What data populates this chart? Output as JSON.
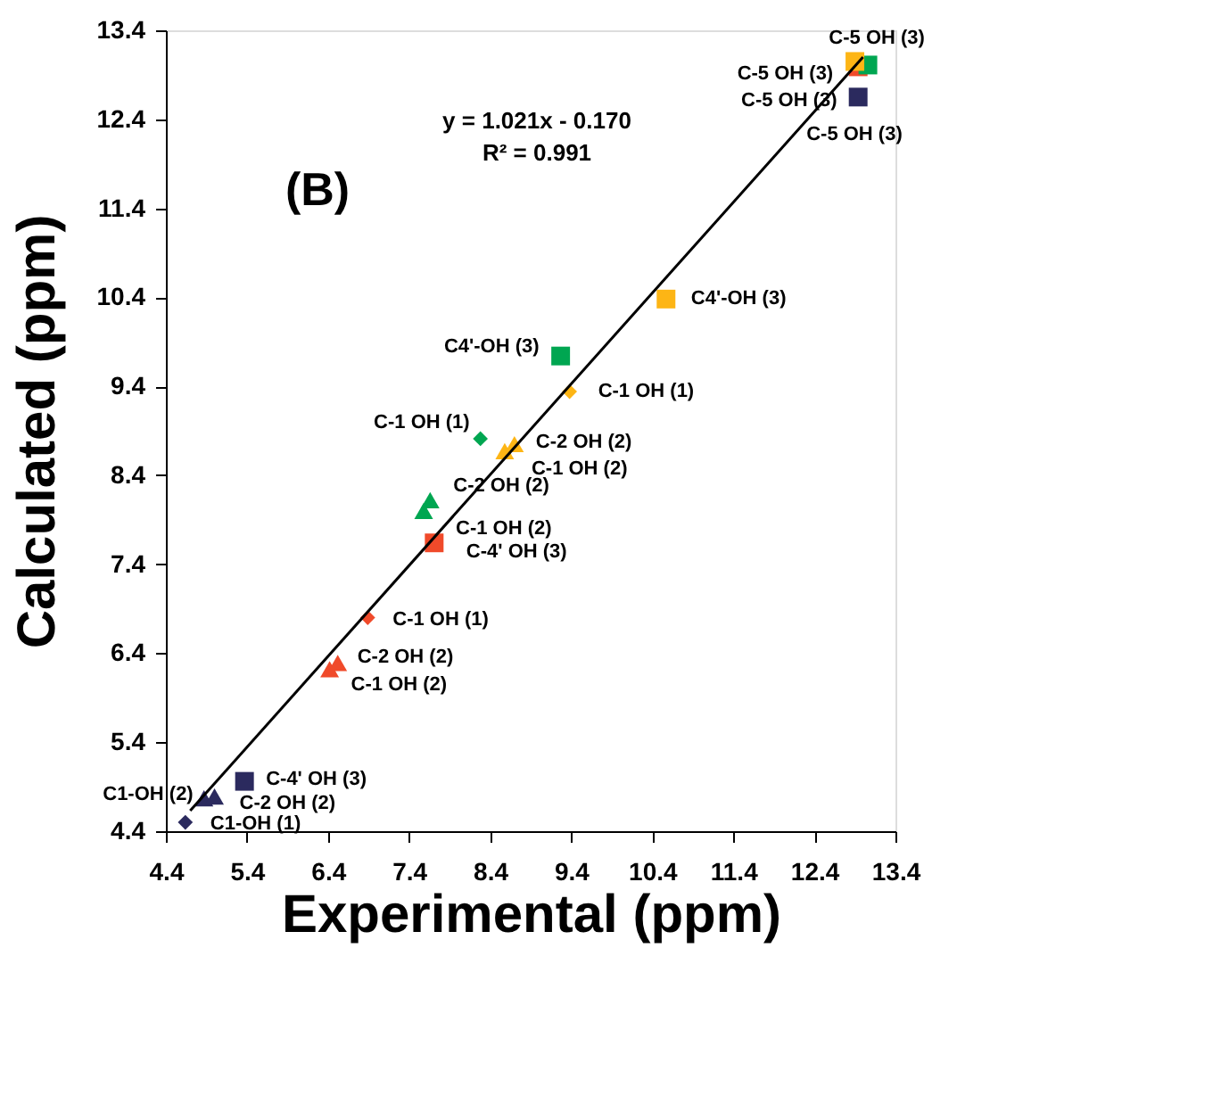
{
  "chart_data": {
    "type": "scatter",
    "xlabel": "Experimental (ppm)",
    "ylabel": "Calculated (ppm)",
    "xlim": [
      4.4,
      13.4
    ],
    "ylim": [
      4.4,
      13.4
    ],
    "xticks": [
      4.4,
      5.4,
      6.4,
      7.4,
      8.4,
      9.4,
      10.4,
      11.4,
      12.4,
      13.4
    ],
    "yticks": [
      4.4,
      5.4,
      6.4,
      7.4,
      8.4,
      9.4,
      10.4,
      11.4,
      12.4,
      13.4
    ],
    "grid": false,
    "series": [
      {
        "marker": "diamond",
        "color": "#2b2a5e",
        "x": [
          4.64
        ],
        "values": [
          4.5
        ],
        "value_labels": [
          "C1-OH (1)"
        ]
      },
      {
        "marker": "triangle",
        "color": "#2b2a5e",
        "x": [
          4.87,
          5.0
        ],
        "values": [
          4.77,
          4.79
        ],
        "value_labels": [
          "C1-OH (2)",
          "C-2 OH (2)"
        ]
      },
      {
        "marker": "square",
        "color": "#2b2a5e",
        "x": [
          5.37,
          12.94
        ],
        "values": [
          4.96,
          12.65
        ],
        "value_labels": [
          "C-4' OH (3)",
          "C-5 OH (3)"
        ]
      },
      {
        "marker": "diamond",
        "color": "#f04a2a",
        "x": [
          6.89
        ],
        "values": [
          6.8
        ],
        "value_labels": [
          "C-1 OH (1)"
        ]
      },
      {
        "marker": "triangle",
        "color": "#f04a2a",
        "x": [
          6.42,
          6.52
        ],
        "values": [
          6.22,
          6.29
        ],
        "value_labels": [
          "C-1 OH (2)",
          "C-2 OH (2)"
        ]
      },
      {
        "marker": "square",
        "color": "#f04a2a",
        "x": [
          7.71,
          12.94
        ],
        "values": [
          7.64,
          12.99
        ],
        "value_labels": [
          "C-4' OH (3)",
          "C-5 OH (3)"
        ]
      },
      {
        "marker": "diamond",
        "color": "#00a651",
        "x": [
          8.28
        ],
        "values": [
          8.81
        ],
        "value_labels": [
          "C-1 OH (1)"
        ]
      },
      {
        "marker": "triangle",
        "color": "#00a651",
        "x": [
          7.58,
          7.66
        ],
        "values": [
          8.0,
          8.12
        ],
        "value_labels": [
          "C-1 OH (2)",
          "C-2 OH (2)"
        ]
      },
      {
        "marker": "square",
        "color": "#00a651",
        "x": [
          9.27,
          13.06
        ],
        "values": [
          9.74,
          13.01
        ],
        "value_labels": [
          "C4'-OH (3)",
          "C-5 OH (3)"
        ]
      },
      {
        "marker": "diamond",
        "color": "#fdb515",
        "x": [
          9.38
        ],
        "values": [
          9.34
        ],
        "value_labels": [
          "C-1 OH (1)"
        ]
      },
      {
        "marker": "triangle",
        "color": "#fdb515",
        "x": [
          8.58,
          8.7
        ],
        "values": [
          8.67,
          8.75
        ],
        "value_labels": [
          "C-1 OH (2)",
          "C-2 OH (2)"
        ]
      },
      {
        "marker": "square",
        "color": "#fdb515",
        "x": [
          10.57,
          12.9
        ],
        "values": [
          10.38,
          13.05
        ],
        "value_labels": [
          "C4'-OH (3)",
          "C-5 OH (3)"
        ]
      },
      {
        "type": "line",
        "marker": "none",
        "color": "#000000",
        "x": [
          4.7,
          13.0
        ],
        "values": [
          4.63,
          13.1
        ]
      }
    ],
    "annotations": [
      "(B)",
      "y = 1.021x - 0.170",
      "R² = 0.991"
    ]
  }
}
